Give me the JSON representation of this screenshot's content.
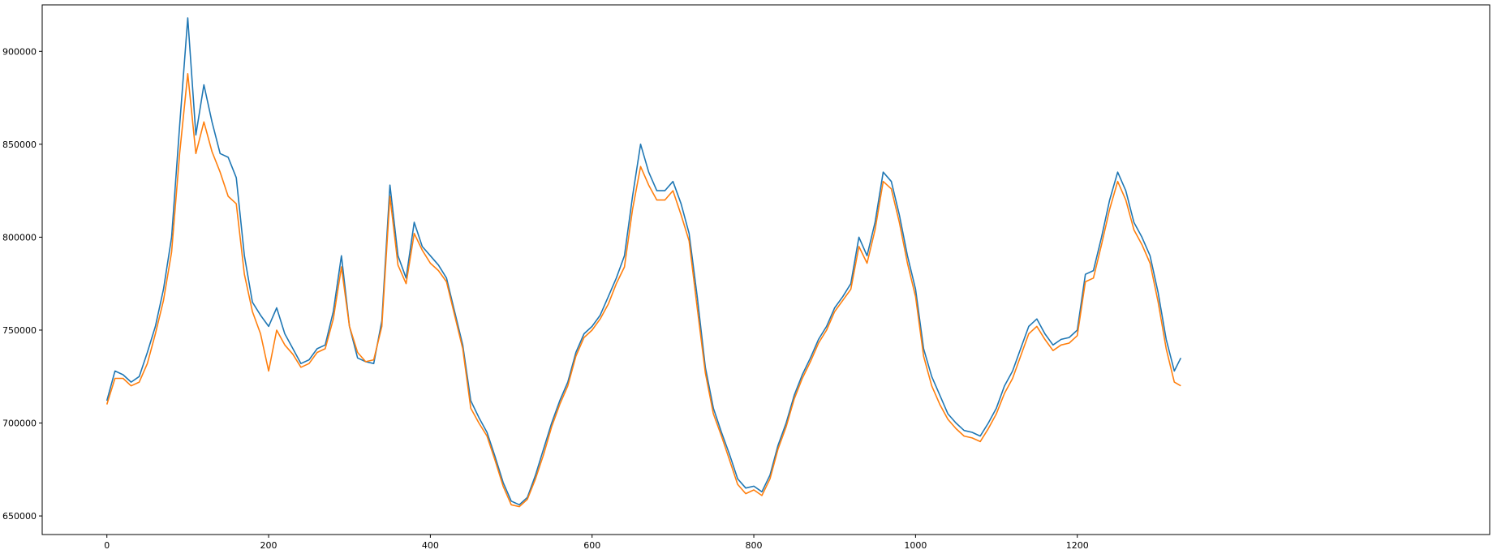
{
  "chart_data": {
    "type": "line",
    "title": "",
    "xlabel": "",
    "ylabel": "",
    "xlim": [
      -80,
      1710
    ],
    "ylim": [
      640000,
      925000
    ],
    "xticks": [
      0,
      200,
      400,
      600,
      800,
      1000,
      1200
    ],
    "yticks": [
      650000,
      700000,
      750000,
      800000,
      850000,
      900000
    ],
    "xtick_labels": [
      "0",
      "200",
      "400",
      "600",
      "800",
      "1000",
      "1200"
    ],
    "ytick_labels": [
      "650000",
      "700000",
      "750000",
      "800000",
      "850000",
      "900000"
    ],
    "grid": false,
    "legend": "none",
    "colors": [
      "#1f77b4",
      "#ff7f0e"
    ],
    "series": [
      {
        "x": [
          0,
          10,
          20,
          30,
          40,
          50,
          60,
          70,
          80,
          90,
          100,
          110,
          120,
          130,
          140,
          150,
          160,
          170,
          180,
          190,
          200,
          210,
          220,
          230,
          240,
          250,
          260,
          270,
          280,
          290,
          300,
          310,
          320,
          330,
          340,
          350,
          360,
          370,
          380,
          390,
          400,
          410,
          420,
          430,
          440,
          450,
          460,
          470,
          480,
          490,
          500,
          510,
          520,
          530,
          540,
          550,
          560,
          570,
          580,
          590,
          600,
          610,
          620,
          630,
          640,
          650,
          660,
          670,
          680,
          690,
          700,
          710,
          720,
          730,
          740,
          750,
          760,
          770,
          780,
          790,
          800,
          810,
          820,
          830,
          840,
          850,
          860,
          870,
          880,
          890,
          900,
          910,
          920,
          930,
          940,
          950,
          960,
          970,
          980,
          990,
          1000,
          1010,
          1020,
          1030,
          1040,
          1050,
          1060,
          1070,
          1080,
          1090,
          1100,
          1110,
          1120,
          1130,
          1140,
          1150,
          1160,
          1170,
          1180,
          1190,
          1200,
          1210,
          1220,
          1230,
          1240,
          1250,
          1260,
          1270,
          1280,
          1290,
          1300,
          1310,
          1320,
          1328
        ],
        "y": [
          712000,
          728000,
          726000,
          722000,
          725000,
          738000,
          752000,
          772000,
          800000,
          860000,
          918000,
          855000,
          882000,
          862000,
          845000,
          843000,
          832000,
          790000,
          765000,
          758000,
          752000,
          762000,
          748000,
          740000,
          732000,
          734000,
          740000,
          742000,
          760000,
          790000,
          752000,
          735000,
          733000,
          732000,
          755000,
          828000,
          790000,
          778000,
          808000,
          795000,
          790000,
          785000,
          778000,
          760000,
          742000,
          712000,
          703000,
          695000,
          682000,
          668000,
          658000,
          656000,
          660000,
          672000,
          686000,
          700000,
          712000,
          722000,
          738000,
          748000,
          752000,
          758000,
          768000,
          778000,
          790000,
          822000,
          850000,
          835000,
          825000,
          825000,
          830000,
          818000,
          802000,
          768000,
          730000,
          708000,
          695000,
          683000,
          670000,
          665000,
          666000,
          663000,
          672000,
          688000,
          700000,
          715000,
          726000,
          735000,
          745000,
          752000,
          762000,
          768000,
          775000,
          800000,
          790000,
          808000,
          835000,
          830000,
          812000,
          790000,
          772000,
          740000,
          725000,
          715000,
          705000,
          700000,
          696000,
          695000,
          693000,
          700000,
          708000,
          720000,
          728000,
          740000,
          752000,
          756000,
          748000,
          742000,
          745000,
          746000,
          750000,
          780000,
          782000,
          800000,
          820000,
          835000,
          825000,
          808000,
          800000,
          790000,
          770000,
          745000,
          728000,
          735000
        ]
      },
      {
        "x": [
          0,
          10,
          20,
          30,
          40,
          50,
          60,
          70,
          80,
          90,
          100,
          110,
          120,
          130,
          140,
          150,
          160,
          170,
          180,
          190,
          200,
          210,
          220,
          230,
          240,
          250,
          260,
          270,
          280,
          290,
          300,
          310,
          320,
          330,
          340,
          350,
          360,
          370,
          380,
          390,
          400,
          410,
          420,
          430,
          440,
          450,
          460,
          470,
          480,
          490,
          500,
          510,
          520,
          530,
          540,
          550,
          560,
          570,
          580,
          590,
          600,
          610,
          620,
          630,
          640,
          650,
          660,
          670,
          680,
          690,
          700,
          710,
          720,
          730,
          740,
          750,
          760,
          770,
          780,
          790,
          800,
          810,
          820,
          830,
          840,
          850,
          860,
          870,
          880,
          890,
          900,
          910,
          920,
          930,
          940,
          950,
          960,
          970,
          980,
          990,
          1000,
          1010,
          1020,
          1030,
          1040,
          1050,
          1060,
          1070,
          1080,
          1090,
          1100,
          1110,
          1120,
          1130,
          1140,
          1150,
          1160,
          1170,
          1180,
          1190,
          1200,
          1210,
          1220,
          1230,
          1240,
          1250,
          1260,
          1270,
          1280,
          1290,
          1300,
          1310,
          1320,
          1328
        ],
        "y": [
          710000,
          724000,
          724000,
          720000,
          722000,
          732000,
          748000,
          766000,
          792000,
          845000,
          888000,
          845000,
          862000,
          846000,
          835000,
          822000,
          818000,
          780000,
          760000,
          748000,
          728000,
          750000,
          742000,
          737000,
          730000,
          732000,
          738000,
          740000,
          756000,
          784000,
          752000,
          738000,
          733000,
          734000,
          752000,
          822000,
          785000,
          775000,
          802000,
          793000,
          786000,
          782000,
          776000,
          758000,
          740000,
          708000,
          700000,
          693000,
          680000,
          666000,
          656000,
          655000,
          659000,
          670000,
          683000,
          698000,
          710000,
          720000,
          736000,
          746000,
          750000,
          756000,
          764000,
          775000,
          784000,
          815000,
          838000,
          828000,
          820000,
          820000,
          825000,
          812000,
          798000,
          762000,
          727000,
          705000,
          693000,
          680000,
          667000,
          662000,
          664000,
          661000,
          670000,
          686000,
          698000,
          713000,
          724000,
          733000,
          743000,
          750000,
          760000,
          766000,
          772000,
          795000,
          786000,
          804000,
          830000,
          826000,
          808000,
          786000,
          768000,
          736000,
          720000,
          710000,
          702000,
          697000,
          693000,
          692000,
          690000,
          697000,
          705000,
          716000,
          724000,
          736000,
          748000,
          752000,
          745000,
          739000,
          742000,
          743000,
          747000,
          776000,
          778000,
          796000,
          815000,
          830000,
          820000,
          804000,
          796000,
          786000,
          765000,
          740000,
          722000,
          720000
        ]
      }
    ]
  }
}
